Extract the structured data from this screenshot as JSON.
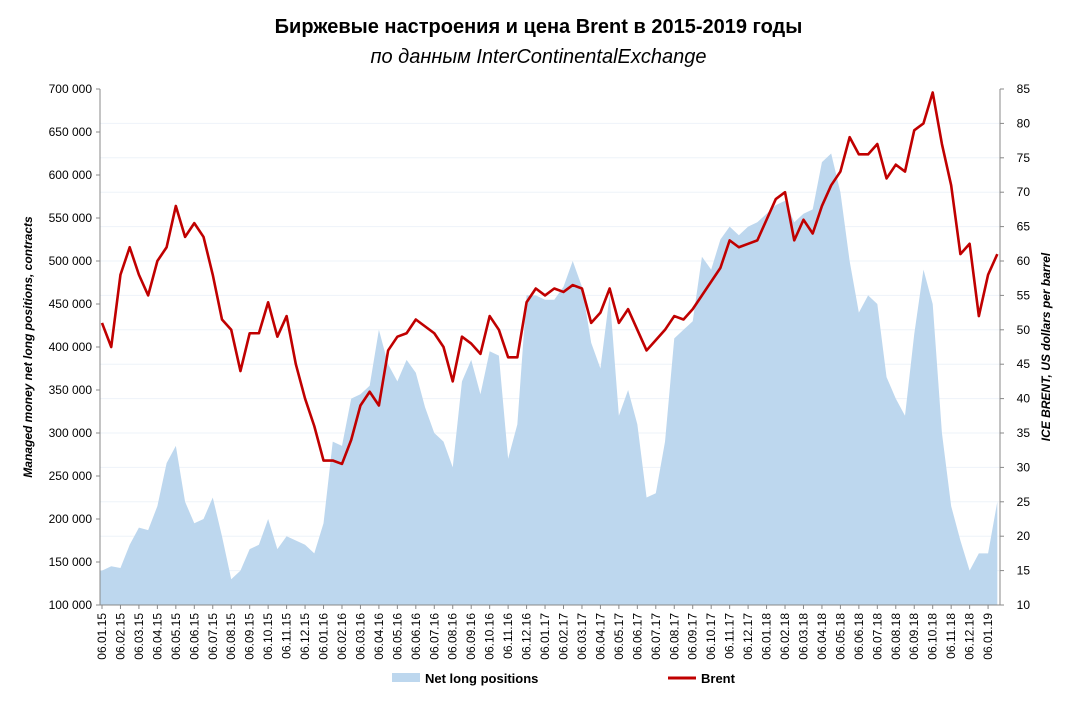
{
  "chart_data": {
    "type": "area+line",
    "title": "Биржевые настроения и цена Brent в 2015-2019 годы",
    "subtitle": "по данным InterContinentalExchange",
    "ylabel_left": "Managed money net long positions, contracts",
    "ylabel_right": "ICE BRENT, US dollars per barrel",
    "ylim_left": [
      100000,
      700000
    ],
    "ylim_right": [
      10,
      85
    ],
    "yticks_left": [
      "100 000",
      "150 000",
      "200 000",
      "250 000",
      "300 000",
      "350 000",
      "400 000",
      "450 000",
      "500 000",
      "550 000",
      "600 000",
      "650 000",
      "700 000"
    ],
    "yticks_right": [
      "10",
      "15",
      "20",
      "25",
      "30",
      "35",
      "40",
      "45",
      "50",
      "55",
      "60",
      "65",
      "70",
      "75",
      "80",
      "85"
    ],
    "xticks": [
      "06.01.15",
      "06.02.15",
      "06.03.15",
      "06.04.15",
      "06.05.15",
      "06.06.15",
      "06.07.15",
      "06.08.15",
      "06.09.15",
      "06.10.15",
      "06.11.15",
      "06.12.15",
      "06.01.16",
      "06.02.16",
      "06.03.16",
      "06.04.16",
      "06.05.16",
      "06.06.16",
      "06.07.16",
      "06.08.16",
      "06.09.16",
      "06.10.16",
      "06.11.16",
      "06.12.16",
      "06.01.17",
      "06.02.17",
      "06.03.17",
      "06.04.17",
      "06.05.17",
      "06.06.17",
      "06.07.17",
      "06.08.17",
      "06.09.17",
      "06.10.17",
      "06.11.17",
      "06.12.17",
      "06.01.18",
      "06.02.18",
      "06.03.18",
      "06.04.18",
      "06.05.18",
      "06.06.18",
      "06.07.18",
      "06.08.18",
      "06.09.18",
      "06.10.18",
      "06.11.18",
      "06.12.18",
      "06.01.19"
    ],
    "x_months_since_start_step": 0.5,
    "legend": "bottom",
    "series": [
      {
        "name": "Net long positions",
        "type": "area",
        "axis": "left",
        "color": "#bdd7ee",
        "values": [
          140000,
          145000,
          143000,
          170000,
          190000,
          187000,
          215000,
          265000,
          285000,
          220000,
          195000,
          200000,
          225000,
          180000,
          130000,
          140000,
          165000,
          170000,
          200000,
          165000,
          180000,
          175000,
          170000,
          160000,
          195000,
          290000,
          285000,
          340000,
          345000,
          355000,
          420000,
          380000,
          360000,
          385000,
          370000,
          330000,
          300000,
          290000,
          260000,
          360000,
          385000,
          345000,
          395000,
          390000,
          270000,
          310000,
          460000,
          460000,
          455000,
          455000,
          470000,
          500000,
          470000,
          405000,
          375000,
          460000,
          320000,
          350000,
          310000,
          225000,
          230000,
          290000,
          410000,
          420000,
          430000,
          505000,
          490000,
          525000,
          540000,
          530000,
          540000,
          545000,
          555000,
          565000,
          570000,
          545000,
          555000,
          560000,
          615000,
          625000,
          580000,
          500000,
          440000,
          460000,
          450000,
          365000,
          340000,
          320000,
          415000,
          490000,
          450000,
          300000,
          215000,
          175000,
          140000,
          160000,
          160000,
          220000
        ]
      },
      {
        "name": "Brent",
        "type": "line",
        "axis": "right",
        "color": "#c00000",
        "values": [
          51,
          47.5,
          58,
          62,
          58,
          55,
          60,
          62,
          68,
          63.5,
          65.5,
          63.5,
          58,
          51.5,
          50,
          44,
          49.5,
          49.5,
          54,
          49,
          52,
          45,
          40,
          36,
          31,
          31,
          30.5,
          34,
          39,
          41,
          39,
          47,
          49,
          49.5,
          51.5,
          50.5,
          49.5,
          47.5,
          42.5,
          49,
          48,
          46.5,
          52,
          50,
          46,
          46,
          54,
          56,
          55,
          56,
          55.5,
          56.5,
          56,
          51,
          52.5,
          56,
          51,
          53,
          50,
          47,
          48.5,
          50,
          52,
          51.5,
          53,
          55,
          57,
          59,
          63,
          62,
          62.5,
          63,
          66,
          69,
          70,
          63,
          66,
          64,
          68,
          71,
          73,
          78,
          75.5,
          75.5,
          77,
          72,
          74,
          73,
          79,
          80,
          84.5,
          77,
          71,
          61,
          62.5,
          52,
          58,
          61
        ]
      }
    ]
  },
  "colors": {
    "area": "#bdd7ee",
    "line": "#c00000",
    "grid": "#eef3f9",
    "axis": "#888888"
  }
}
